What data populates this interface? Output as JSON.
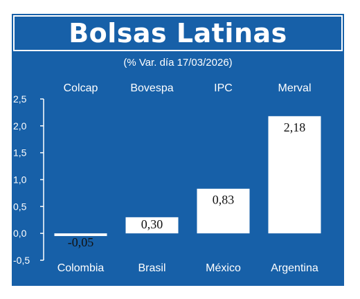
{
  "header": {
    "title": "Bolsas Latinas",
    "subtitle": "(% Var. día 17/03/2026)"
  },
  "colors": {
    "background": "#1760a8",
    "bar": "#ffffff",
    "text": "#ffffff"
  },
  "chart_data": {
    "type": "bar",
    "title": "Bolsas Latinas",
    "subtitle": "(% Var. día 17/03/2026)",
    "categories": [
      "Colombia",
      "Brasil",
      "México",
      "Argentina"
    ],
    "indices": [
      "Colcap",
      "Bovespa",
      "IPC",
      "Merval"
    ],
    "values": [
      -0.05,
      0.3,
      0.83,
      2.18
    ],
    "value_labels": [
      "-0,05",
      "0,30",
      "0,83",
      "2,18"
    ],
    "ylim": [
      -0.5,
      2.5
    ],
    "yticks": [
      2.5,
      2.0,
      1.5,
      1.0,
      0.5,
      0.0,
      -0.5
    ],
    "ytick_labels": [
      "2,5",
      "2,0",
      "1,5",
      "1,0",
      "0,5",
      "0,0",
      "-0,5"
    ],
    "grid": false,
    "legend": "none"
  }
}
